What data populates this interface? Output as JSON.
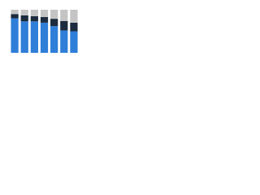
{
  "chart_data": {
    "type": "stacked_bar",
    "categories": [
      null,
      null,
      null,
      null,
      null,
      null,
      null
    ],
    "series": [
      {
        "color": "#2f7ed8",
        "values": [
          80,
          73,
          73,
          70,
          62,
          52,
          50
        ]
      },
      {
        "color": "#1c2b3d",
        "values": [
          10,
          14,
          12,
          13,
          17,
          22,
          20
        ]
      },
      {
        "color": "#c4c4c4",
        "values": [
          10,
          13,
          15,
          17,
          21,
          26,
          30
        ]
      }
    ],
    "ylim": [
      0,
      100
    ]
  }
}
